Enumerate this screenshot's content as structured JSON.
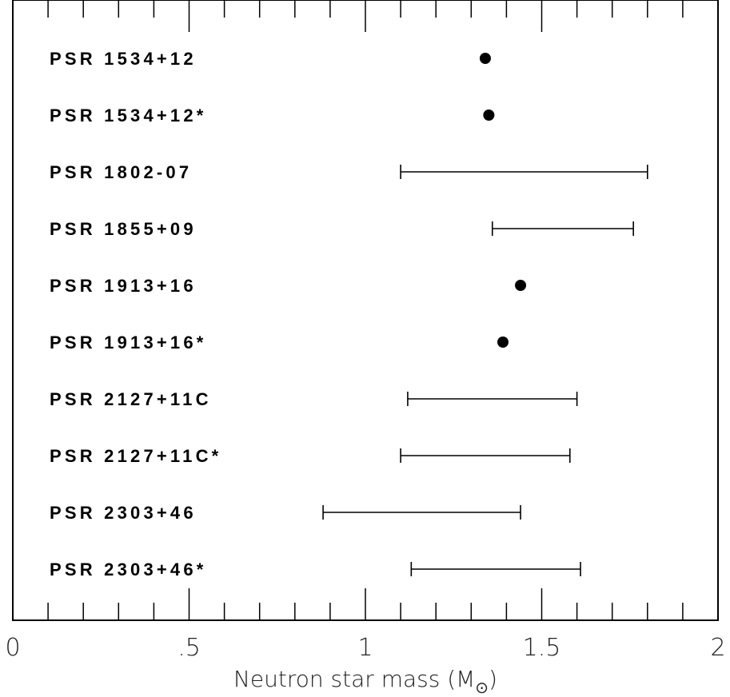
{
  "chart_data": {
    "type": "scatter",
    "xlabel": "Neutron star mass (M",
    "xlabel_symbol": "⊙",
    "xlabel_close": ")",
    "xlim": [
      0,
      2
    ],
    "x_major_ticks": [
      0,
      0.5,
      1,
      1.5,
      2
    ],
    "x_tick_labels": [
      "0",
      ".5",
      "1",
      "1.5",
      "2"
    ],
    "grid": false,
    "legend": "none",
    "pulsars": [
      {
        "label": "PSR 1534+12",
        "kind": "point",
        "value": 1.34
      },
      {
        "label": "PSR 1534+12*",
        "kind": "point",
        "value": 1.35
      },
      {
        "label": "PSR 1802-07",
        "kind": "range",
        "low": 1.1,
        "high": 1.8
      },
      {
        "label": "PSR 1855+09",
        "kind": "range",
        "low": 1.36,
        "high": 1.76
      },
      {
        "label": "PSR 1913+16",
        "kind": "point",
        "value": 1.44
      },
      {
        "label": "PSR 1913+16*",
        "kind": "point",
        "value": 1.39
      },
      {
        "label": "PSR 2127+11C",
        "kind": "range",
        "low": 1.12,
        "high": 1.6
      },
      {
        "label": "PSR 2127+11C*",
        "kind": "range",
        "low": 1.1,
        "high": 1.58
      },
      {
        "label": "PSR 2303+46",
        "kind": "range",
        "low": 0.88,
        "high": 1.44
      },
      {
        "label": "PSR 2303+46*",
        "kind": "range",
        "low": 1.13,
        "high": 1.61
      }
    ]
  }
}
